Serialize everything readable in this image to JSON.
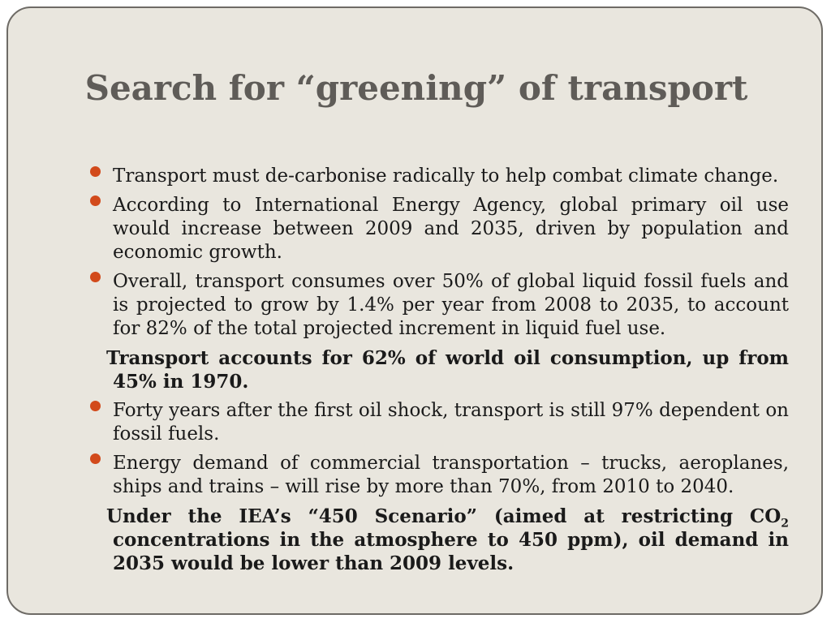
{
  "slide": {
    "title": "Search for “greening” of transport",
    "bullet_color": "#d24a1b",
    "items": [
      {
        "type": "bullet",
        "icon": "bullet-dot-icon",
        "text": "Transport must de-carbonise radically to help combat climate change."
      },
      {
        "type": "bullet",
        "icon": "bullet-dot-icon",
        "text": "According to International Energy Agency, global primary oil use would increase between 2009 and 2035, driven by population and economic growth."
      },
      {
        "type": "bullet",
        "icon": "bullet-dot-icon",
        "text": "Overall, transport consumes over 50% of global liquid fossil fuels and is projected to grow by 1.4% per year from 2008 to 2035, to account for 82% of the total projected increment in liquid fuel use."
      },
      {
        "type": "note",
        "text": "Transport accounts for 62% of world oil consumption, up from 45% in 1970."
      },
      {
        "type": "bullet",
        "icon": "bullet-dot-icon",
        "text": "Forty years after the first oil shock, transport is still 97% dependent on fossil fuels."
      },
      {
        "type": "bullet",
        "icon": "bullet-dot-icon",
        "text": "Energy demand of commercial transportation – trucks, aeroplanes, ships and trains – will rise by more than 70%, from 2010 to 2040."
      },
      {
        "type": "note",
        "text_before": "Under the IEA’s “450 Scenario” (aimed at restricting CO",
        "subscript": "2",
        "text_after": " concentrations in the atmosphere to 450 ppm), oil demand in 2035 would be lower than 2009 levels."
      }
    ]
  }
}
